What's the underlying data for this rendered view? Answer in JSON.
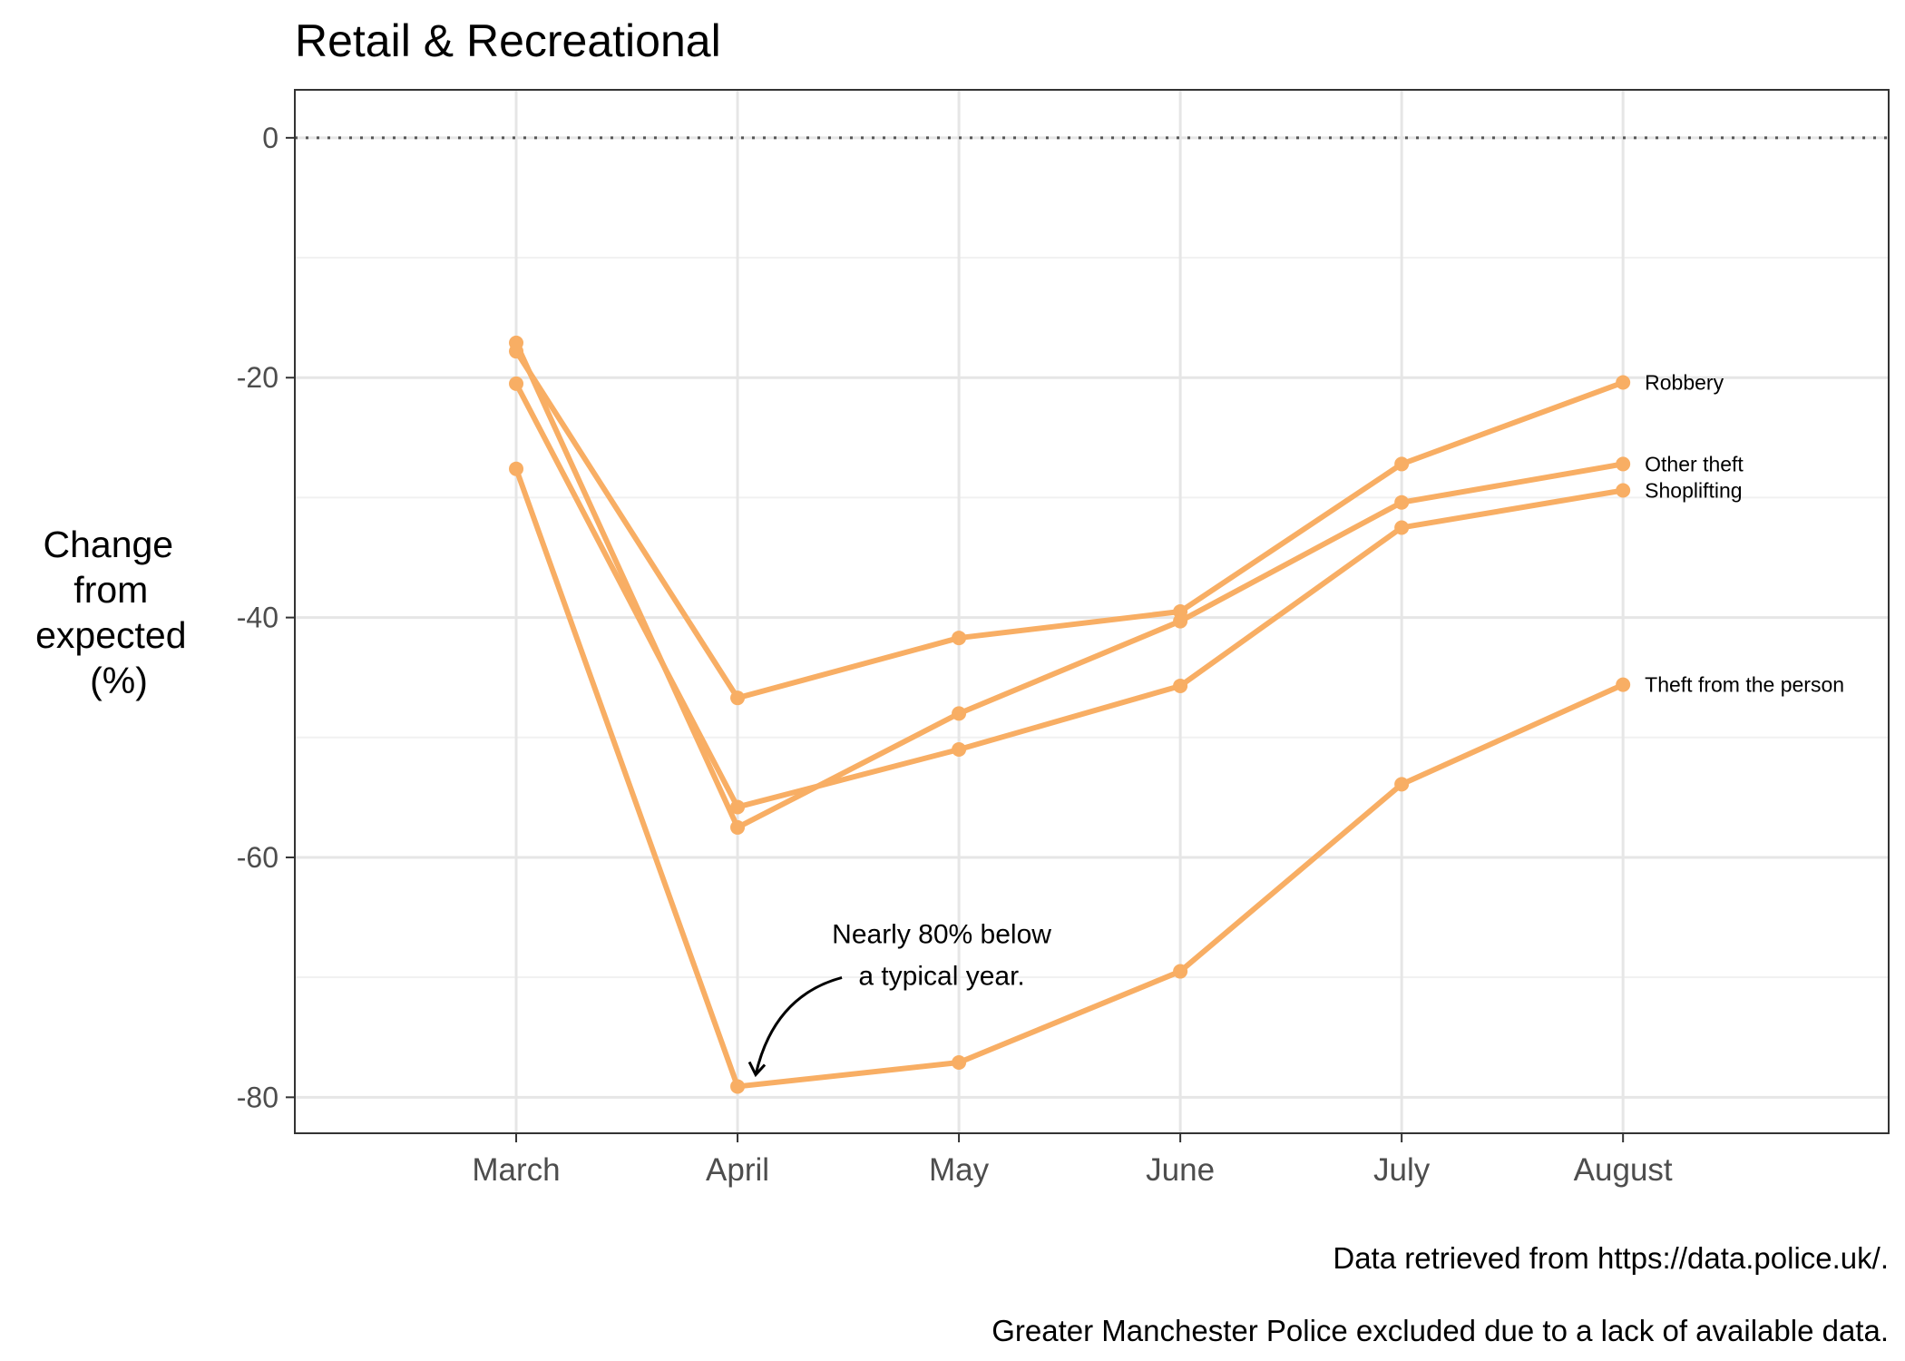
{
  "chart_data": {
    "type": "line",
    "title": "Retail & Recreational",
    "xlabel": "",
    "ylabel": "Change from expected (%)",
    "ylabel_lines": [
      "Change",
      "from",
      "expected",
      "(%)"
    ],
    "categories": [
      "March",
      "April",
      "May",
      "June",
      "July",
      "August"
    ],
    "xlim": [
      -1,
      6.2
    ],
    "ylim": [
      -83,
      4
    ],
    "yticks": [
      0,
      -20,
      -40,
      -60,
      -80
    ],
    "grid": true,
    "reference_line": 0,
    "series": [
      {
        "name": "Robbery",
        "values": [
          -17.8,
          -46.7,
          -41.7,
          -39.5,
          -27.2,
          -20.4
        ]
      },
      {
        "name": "Other theft",
        "values": [
          -17.1,
          -57.5,
          -48.0,
          -40.3,
          -30.4,
          -27.2
        ]
      },
      {
        "name": "Shoplifting",
        "values": [
          -20.5,
          -55.8,
          -51.0,
          -45.7,
          -32.5,
          -29.4
        ]
      },
      {
        "name": "Theft from the person",
        "values": [
          -27.6,
          -79.1,
          -77.1,
          -69.5,
          -53.9,
          -45.6
        ]
      }
    ],
    "line_color": "#F8AE64",
    "annotation": {
      "lines": [
        "Nearly 80% below",
        "a typical year."
      ],
      "points_to": {
        "x": "April",
        "y": -79.1
      }
    },
    "caption": [
      "Data retrieved from https://data.police.uk/.",
      "Greater Manchester Police excluded due to a lack of available data."
    ]
  }
}
